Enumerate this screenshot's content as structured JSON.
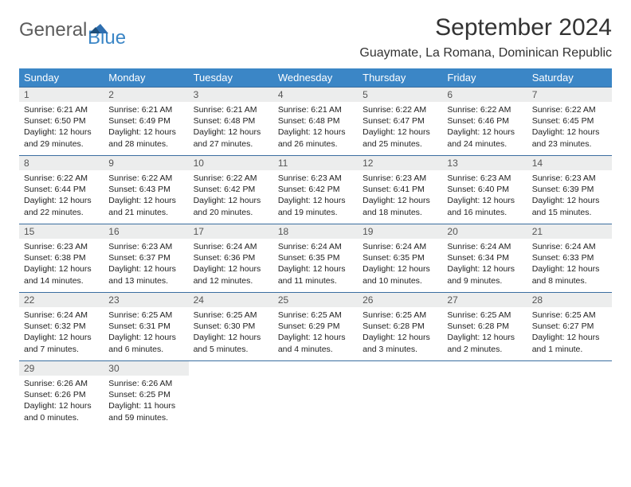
{
  "logo": {
    "part1": "General",
    "part2": "Blue"
  },
  "title": "September 2024",
  "location": "Guaymate, La Romana, Dominican Republic",
  "header_bg": "#3b86c6",
  "row_border": "#3b6ea0",
  "daynum_bg": "#eceded",
  "text_color": "#222222",
  "font_size_body": 10.5,
  "weekdays": [
    "Sunday",
    "Monday",
    "Tuesday",
    "Wednesday",
    "Thursday",
    "Friday",
    "Saturday"
  ],
  "weeks": [
    [
      {
        "n": "1",
        "sr": "6:21 AM",
        "ss": "6:50 PM",
        "dl": "12 hours and 29 minutes."
      },
      {
        "n": "2",
        "sr": "6:21 AM",
        "ss": "6:49 PM",
        "dl": "12 hours and 28 minutes."
      },
      {
        "n": "3",
        "sr": "6:21 AM",
        "ss": "6:48 PM",
        "dl": "12 hours and 27 minutes."
      },
      {
        "n": "4",
        "sr": "6:21 AM",
        "ss": "6:48 PM",
        "dl": "12 hours and 26 minutes."
      },
      {
        "n": "5",
        "sr": "6:22 AM",
        "ss": "6:47 PM",
        "dl": "12 hours and 25 minutes."
      },
      {
        "n": "6",
        "sr": "6:22 AM",
        "ss": "6:46 PM",
        "dl": "12 hours and 24 minutes."
      },
      {
        "n": "7",
        "sr": "6:22 AM",
        "ss": "6:45 PM",
        "dl": "12 hours and 23 minutes."
      }
    ],
    [
      {
        "n": "8",
        "sr": "6:22 AM",
        "ss": "6:44 PM",
        "dl": "12 hours and 22 minutes."
      },
      {
        "n": "9",
        "sr": "6:22 AM",
        "ss": "6:43 PM",
        "dl": "12 hours and 21 minutes."
      },
      {
        "n": "10",
        "sr": "6:22 AM",
        "ss": "6:42 PM",
        "dl": "12 hours and 20 minutes."
      },
      {
        "n": "11",
        "sr": "6:23 AM",
        "ss": "6:42 PM",
        "dl": "12 hours and 19 minutes."
      },
      {
        "n": "12",
        "sr": "6:23 AM",
        "ss": "6:41 PM",
        "dl": "12 hours and 18 minutes."
      },
      {
        "n": "13",
        "sr": "6:23 AM",
        "ss": "6:40 PM",
        "dl": "12 hours and 16 minutes."
      },
      {
        "n": "14",
        "sr": "6:23 AM",
        "ss": "6:39 PM",
        "dl": "12 hours and 15 minutes."
      }
    ],
    [
      {
        "n": "15",
        "sr": "6:23 AM",
        "ss": "6:38 PM",
        "dl": "12 hours and 14 minutes."
      },
      {
        "n": "16",
        "sr": "6:23 AM",
        "ss": "6:37 PM",
        "dl": "12 hours and 13 minutes."
      },
      {
        "n": "17",
        "sr": "6:24 AM",
        "ss": "6:36 PM",
        "dl": "12 hours and 12 minutes."
      },
      {
        "n": "18",
        "sr": "6:24 AM",
        "ss": "6:35 PM",
        "dl": "12 hours and 11 minutes."
      },
      {
        "n": "19",
        "sr": "6:24 AM",
        "ss": "6:35 PM",
        "dl": "12 hours and 10 minutes."
      },
      {
        "n": "20",
        "sr": "6:24 AM",
        "ss": "6:34 PM",
        "dl": "12 hours and 9 minutes."
      },
      {
        "n": "21",
        "sr": "6:24 AM",
        "ss": "6:33 PM",
        "dl": "12 hours and 8 minutes."
      }
    ],
    [
      {
        "n": "22",
        "sr": "6:24 AM",
        "ss": "6:32 PM",
        "dl": "12 hours and 7 minutes."
      },
      {
        "n": "23",
        "sr": "6:25 AM",
        "ss": "6:31 PM",
        "dl": "12 hours and 6 minutes."
      },
      {
        "n": "24",
        "sr": "6:25 AM",
        "ss": "6:30 PM",
        "dl": "12 hours and 5 minutes."
      },
      {
        "n": "25",
        "sr": "6:25 AM",
        "ss": "6:29 PM",
        "dl": "12 hours and 4 minutes."
      },
      {
        "n": "26",
        "sr": "6:25 AM",
        "ss": "6:28 PM",
        "dl": "12 hours and 3 minutes."
      },
      {
        "n": "27",
        "sr": "6:25 AM",
        "ss": "6:28 PM",
        "dl": "12 hours and 2 minutes."
      },
      {
        "n": "28",
        "sr": "6:25 AM",
        "ss": "6:27 PM",
        "dl": "12 hours and 1 minute."
      }
    ],
    [
      {
        "n": "29",
        "sr": "6:26 AM",
        "ss": "6:26 PM",
        "dl": "12 hours and 0 minutes."
      },
      {
        "n": "30",
        "sr": "6:26 AM",
        "ss": "6:25 PM",
        "dl": "11 hours and 59 minutes."
      },
      null,
      null,
      null,
      null,
      null
    ]
  ],
  "labels": {
    "sunrise": "Sunrise:",
    "sunset": "Sunset:",
    "daylight": "Daylight:"
  }
}
